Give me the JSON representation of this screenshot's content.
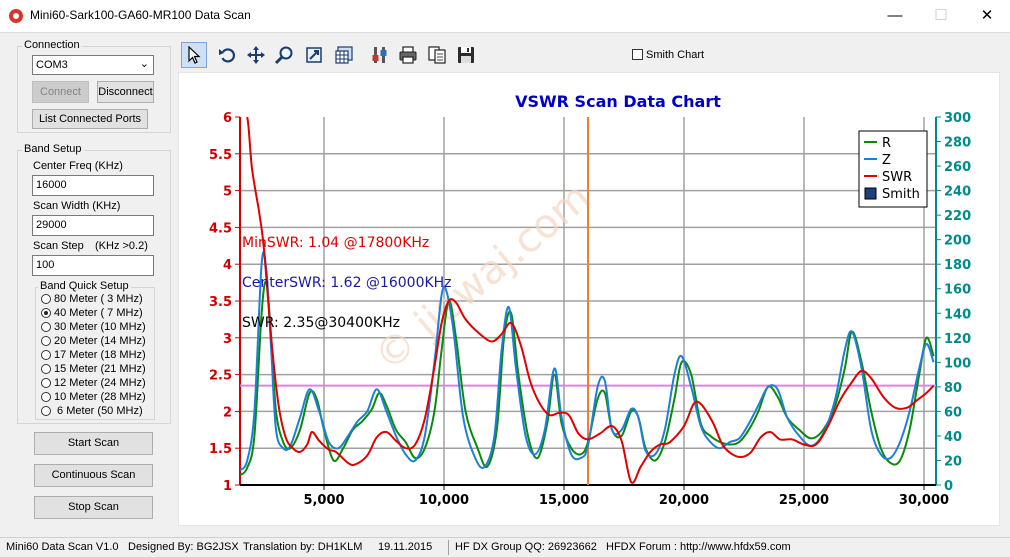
{
  "window": {
    "title": "Mini60-Sark100-GA60-MR100 Data Scan",
    "min": "—",
    "max": "☐",
    "close": "✕"
  },
  "connection": {
    "group_label": "Connection",
    "port": "COM3",
    "connect_label": "Connect",
    "disconnect_label": "Disconnect",
    "list_ports_label": "List Connected Ports"
  },
  "band_setup": {
    "group_label": "Band Setup",
    "center_freq_label": "Center Freq  (KHz)",
    "center_freq_value": "16000",
    "scan_width_label": "Scan Width   (KHz)",
    "scan_width_value": "29000",
    "scan_step_label": "Scan Step",
    "scan_step_hint": "(KHz >0.2)",
    "scan_step_value": "100",
    "quick_label": "Band Quick Setup",
    "bands": [
      {
        "label": "80 Meter (  3 MHz)",
        "selected": false
      },
      {
        "label": "40 Meter (  7 MHz)",
        "selected": true
      },
      {
        "label": "30 Meter (10 MHz)",
        "selected": false
      },
      {
        "label": "20 Meter (14 MHz)",
        "selected": false
      },
      {
        "label": "17 Meter (18 MHz)",
        "selected": false
      },
      {
        "label": "15 Meter (21 MHz)",
        "selected": false
      },
      {
        "label": "12 Meter (24 MHz)",
        "selected": false
      },
      {
        "label": "10 Meter (28 MHz)",
        "selected": false
      },
      {
        "label": "  6 Meter  (50 MHz)",
        "selected": false
      }
    ]
  },
  "buttons": {
    "start": "Start Scan",
    "continuous": "Continuous Scan",
    "stop": "Stop Scan"
  },
  "toolbar": {
    "icons": [
      "pointer-icon",
      "undo-icon",
      "pan-icon",
      "zoom-icon",
      "export-icon",
      "data-table-icon",
      "settings-icon",
      "print-icon",
      "copy-icon",
      "save-icon"
    ],
    "smith_chart_label": "Smith Chart"
  },
  "status": {
    "version": "Mini60 Data Scan V1.0",
    "designer": "Designed By: BG2JSX",
    "translator": "Translation by: DH1KLM",
    "date": "19.11.2015",
    "qq": "HF DX Group QQ: 26923662",
    "forum": "HFDX Forum :  http://www.hfdx59.com"
  },
  "chart_data": {
    "type": "line",
    "title": "VSWR Scan Data Chart",
    "xlim": [
      1500,
      30500
    ],
    "x_ticks": [
      5000,
      10000,
      15000,
      20000,
      25000,
      30000
    ],
    "x_tick_labels": [
      "5,000",
      "10,000",
      "15,000",
      "20,000",
      "25,000",
      "30,000"
    ],
    "ylim_left": [
      1,
      6
    ],
    "y_left_ticks": [
      "1",
      "1.5",
      "2",
      "2.5",
      "3",
      "3.5",
      "4",
      "4.5",
      "5",
      "5.5",
      "6"
    ],
    "ylim_right": [
      0,
      300
    ],
    "y_right_ticks": [
      "0",
      "20",
      "40",
      "60",
      "80",
      "100",
      "120",
      "140",
      "160",
      "180",
      "200",
      "220",
      "240",
      "260",
      "280",
      "300"
    ],
    "grid": true,
    "legend_position": "top-right",
    "legend": [
      "R",
      "Z",
      "SWR",
      "Smith"
    ],
    "colors": {
      "R": "#0a8a0a",
      "Z": "#1e7fd8",
      "SWR": "#e00000",
      "Smith": "#1f3f7f",
      "marker": "#f08030",
      "ref": "#e080e0",
      "left_axis": "#d00000",
      "right_axis": "#008b8b",
      "title": "#0000c8"
    },
    "annotations": {
      "min_swr": "MinSWR: 1.04 @17800KHz",
      "center_swr": "CenterSWR: 1.62 @16000KHz",
      "swr": "SWR: 2.35@30400KHz"
    },
    "watermark": "© jiewaj.com",
    "center_marker_x": 16000,
    "ref_line_swr": 2.35,
    "series": [
      {
        "name": "SWR",
        "axis": "left",
        "points": [
          [
            1500,
            6
          ],
          [
            1800,
            6
          ],
          [
            2000,
            5.3
          ],
          [
            2300,
            4.7
          ],
          [
            2500,
            4.2
          ],
          [
            2800,
            3.0
          ],
          [
            3100,
            2.1
          ],
          [
            3400,
            1.65
          ],
          [
            3700,
            1.5
          ],
          [
            4000,
            1.45
          ],
          [
            4300,
            1.55
          ],
          [
            4500,
            1.72
          ],
          [
            4800,
            1.6
          ],
          [
            5200,
            1.48
          ],
          [
            5500,
            1.45
          ],
          [
            6000,
            1.3
          ],
          [
            6300,
            1.28
          ],
          [
            6800,
            1.4
          ],
          [
            7200,
            1.65
          ],
          [
            7600,
            1.72
          ],
          [
            8000,
            1.6
          ],
          [
            8400,
            1.5
          ],
          [
            8800,
            1.55
          ],
          [
            9200,
            1.9
          ],
          [
            9600,
            2.6
          ],
          [
            9900,
            3.2
          ],
          [
            10200,
            3.5
          ],
          [
            10500,
            3.48
          ],
          [
            10900,
            3.25
          ],
          [
            11500,
            3.05
          ],
          [
            12000,
            2.95
          ],
          [
            12400,
            3.05
          ],
          [
            12800,
            3.2
          ],
          [
            13200,
            2.9
          ],
          [
            13600,
            2.4
          ],
          [
            14000,
            2.1
          ],
          [
            14400,
            1.95
          ],
          [
            14800,
            1.98
          ],
          [
            15200,
            1.95
          ],
          [
            15600,
            1.7
          ],
          [
            16000,
            1.62
          ],
          [
            16500,
            1.7
          ],
          [
            17000,
            1.8
          ],
          [
            17400,
            1.6
          ],
          [
            17800,
            1.04
          ],
          [
            18200,
            1.25
          ],
          [
            18600,
            1.45
          ],
          [
            19000,
            1.55
          ],
          [
            19400,
            1.58
          ],
          [
            20000,
            1.8
          ],
          [
            20400,
            2.1
          ],
          [
            20700,
            2.1
          ],
          [
            21200,
            1.85
          ],
          [
            21600,
            1.55
          ],
          [
            22000,
            1.42
          ],
          [
            22400,
            1.38
          ],
          [
            22800,
            1.45
          ],
          [
            23200,
            1.65
          ],
          [
            23600,
            1.72
          ],
          [
            24000,
            1.62
          ],
          [
            24500,
            1.62
          ],
          [
            25000,
            1.55
          ],
          [
            25500,
            1.55
          ],
          [
            26000,
            1.8
          ],
          [
            26500,
            2.15
          ],
          [
            27000,
            2.4
          ],
          [
            27400,
            2.55
          ],
          [
            27800,
            2.45
          ],
          [
            28300,
            2.2
          ],
          [
            28800,
            2.05
          ],
          [
            29300,
            2.05
          ],
          [
            29700,
            2.15
          ],
          [
            30100,
            2.25
          ],
          [
            30400,
            2.35
          ]
        ]
      },
      {
        "name": "R",
        "axis": "right",
        "points": [
          [
            1500,
            8
          ],
          [
            1800,
            14
          ],
          [
            2100,
            40
          ],
          [
            2400,
            140
          ],
          [
            2600,
            165
          ],
          [
            2800,
            120
          ],
          [
            3000,
            60
          ],
          [
            3300,
            35
          ],
          [
            3600,
            30
          ],
          [
            4000,
            45
          ],
          [
            4400,
            75
          ],
          [
            4700,
            70
          ],
          [
            5000,
            45
          ],
          [
            5400,
            20
          ],
          [
            5800,
            30
          ],
          [
            6200,
            45
          ],
          [
            6600,
            52
          ],
          [
            7000,
            62
          ],
          [
            7300,
            75
          ],
          [
            7600,
            65
          ],
          [
            8000,
            45
          ],
          [
            8400,
            35
          ],
          [
            8800,
            22
          ],
          [
            9200,
            30
          ],
          [
            9600,
            60
          ],
          [
            9900,
            110
          ],
          [
            10200,
            150
          ],
          [
            10500,
            120
          ],
          [
            10900,
            60
          ],
          [
            11400,
            30
          ],
          [
            11800,
            15
          ],
          [
            12200,
            45
          ],
          [
            12500,
            120
          ],
          [
            12800,
            140
          ],
          [
            13100,
            90
          ],
          [
            13500,
            40
          ],
          [
            13900,
            22
          ],
          [
            14300,
            50
          ],
          [
            14600,
            90
          ],
          [
            14900,
            50
          ],
          [
            15300,
            30
          ],
          [
            15700,
            25
          ],
          [
            16000,
            35
          ],
          [
            16400,
            70
          ],
          [
            16700,
            75
          ],
          [
            17000,
            45
          ],
          [
            17400,
            40
          ],
          [
            17800,
            60
          ],
          [
            18100,
            55
          ],
          [
            18400,
            30
          ],
          [
            18800,
            20
          ],
          [
            19200,
            35
          ],
          [
            19600,
            70
          ],
          [
            19900,
            100
          ],
          [
            20300,
            90
          ],
          [
            20700,
            50
          ],
          [
            21100,
            40
          ],
          [
            21500,
            35
          ],
          [
            21900,
            33
          ],
          [
            22300,
            35
          ],
          [
            22700,
            45
          ],
          [
            23100,
            60
          ],
          [
            23500,
            80
          ],
          [
            23900,
            72
          ],
          [
            24300,
            55
          ],
          [
            24800,
            45
          ],
          [
            25300,
            38
          ],
          [
            25800,
            45
          ],
          [
            26300,
            65
          ],
          [
            26700,
            95
          ],
          [
            27000,
            125
          ],
          [
            27400,
            100
          ],
          [
            27800,
            60
          ],
          [
            28200,
            30
          ],
          [
            28600,
            18
          ],
          [
            29000,
            20
          ],
          [
            29400,
            45
          ],
          [
            29800,
            90
          ],
          [
            30100,
            120
          ],
          [
            30400,
            105
          ]
        ]
      },
      {
        "name": "Z",
        "axis": "right",
        "points": [
          [
            1500,
            12
          ],
          [
            1800,
            20
          ],
          [
            2100,
            60
          ],
          [
            2400,
            180
          ],
          [
            2600,
            175
          ],
          [
            2800,
            110
          ],
          [
            3000,
            45
          ],
          [
            3300,
            30
          ],
          [
            3600,
            32
          ],
          [
            4000,
            55
          ],
          [
            4400,
            78
          ],
          [
            4800,
            60
          ],
          [
            5200,
            35
          ],
          [
            5600,
            30
          ],
          [
            6000,
            40
          ],
          [
            6400,
            52
          ],
          [
            6800,
            60
          ],
          [
            7200,
            78
          ],
          [
            7600,
            60
          ],
          [
            8000,
            40
          ],
          [
            8400,
            25
          ],
          [
            8800,
            20
          ],
          [
            9200,
            40
          ],
          [
            9600,
            100
          ],
          [
            9900,
            155
          ],
          [
            10100,
            158
          ],
          [
            10400,
            125
          ],
          [
            10800,
            55
          ],
          [
            11300,
            22
          ],
          [
            11700,
            15
          ],
          [
            12100,
            40
          ],
          [
            12400,
            110
          ],
          [
            12700,
            145
          ],
          [
            13000,
            95
          ],
          [
            13400,
            40
          ],
          [
            13800,
            25
          ],
          [
            14200,
            45
          ],
          [
            14600,
            95
          ],
          [
            14900,
            55
          ],
          [
            15300,
            25
          ],
          [
            15700,
            22
          ],
          [
            16000,
            32
          ],
          [
            16400,
            80
          ],
          [
            16700,
            85
          ],
          [
            17000,
            45
          ],
          [
            17400,
            45
          ],
          [
            17800,
            62
          ],
          [
            18100,
            55
          ],
          [
            18400,
            28
          ],
          [
            18800,
            25
          ],
          [
            19200,
            45
          ],
          [
            19600,
            90
          ],
          [
            19900,
            105
          ],
          [
            20300,
            80
          ],
          [
            20700,
            48
          ],
          [
            21100,
            35
          ],
          [
            21500,
            30
          ],
          [
            21900,
            35
          ],
          [
            22300,
            38
          ],
          [
            22700,
            50
          ],
          [
            23100,
            65
          ],
          [
            23500,
            80
          ],
          [
            23900,
            78
          ],
          [
            24300,
            55
          ],
          [
            24800,
            40
          ],
          [
            25300,
            32
          ],
          [
            25800,
            42
          ],
          [
            26300,
            70
          ],
          [
            26700,
            110
          ],
          [
            27000,
            125
          ],
          [
            27400,
            95
          ],
          [
            27800,
            45
          ],
          [
            28200,
            25
          ],
          [
            28600,
            22
          ],
          [
            29000,
            35
          ],
          [
            29400,
            60
          ],
          [
            29800,
            95
          ],
          [
            30100,
            115
          ],
          [
            30400,
            100
          ]
        ]
      }
    ]
  }
}
